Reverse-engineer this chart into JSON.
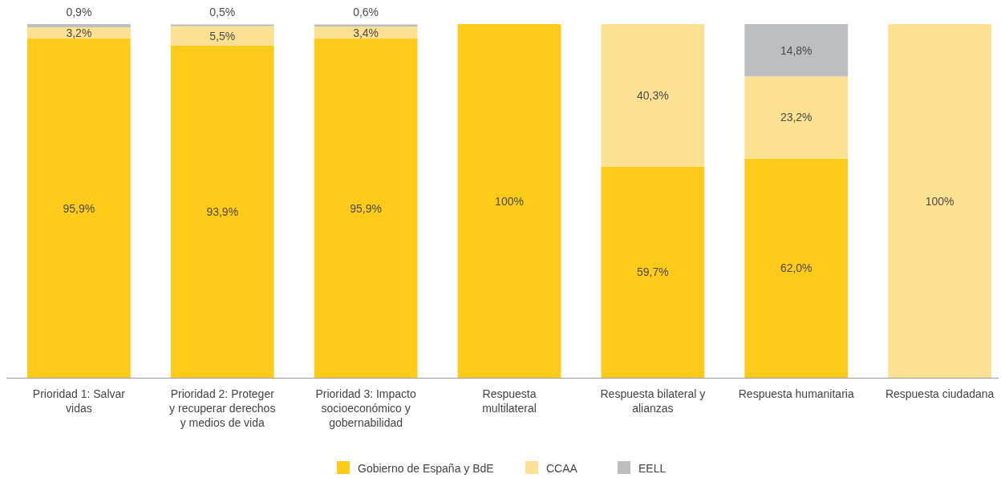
{
  "chart_data": {
    "type": "bar",
    "stacked": true,
    "categories": [
      "Prioridad 1: Salvar vidas",
      "Prioridad 2: Proteger y recuperar derechos y medios de vida",
      "Prioridad 3: Impacto socioeconómico y gobernabilidad",
      "Respuesta multilateral",
      "Respuesta bilateral y alianzas",
      "Respuesta humanitaria",
      "Respuesta ciudadana"
    ],
    "series": [
      {
        "name": "Gobierno de España y BdE",
        "color": "#fecb1a",
        "values": [
          95.9,
          93.9,
          95.9,
          100,
          59.7,
          62.0,
          null
        ],
        "value_labels": [
          "95,9%",
          "93,9%",
          "95,9%",
          "100%",
          "59,7%",
          "62,0%",
          null
        ]
      },
      {
        "name": "CCAA",
        "color": "#fde192",
        "values": [
          3.2,
          5.5,
          3.4,
          null,
          40.3,
          23.2,
          100
        ],
        "value_labels": [
          "3,2%",
          "5,5%",
          "3,4%",
          null,
          "40,3%",
          "23,2%",
          "100%"
        ]
      },
      {
        "name": "EELL",
        "color": "#bdbec2",
        "values": [
          0.9,
          0.5,
          0.6,
          null,
          null,
          14.8,
          null
        ],
        "value_labels": [
          "0,9%",
          "0,5%",
          "0,6%",
          null,
          null,
          "14,8%",
          null
        ]
      }
    ],
    "legend": "bottom"
  }
}
